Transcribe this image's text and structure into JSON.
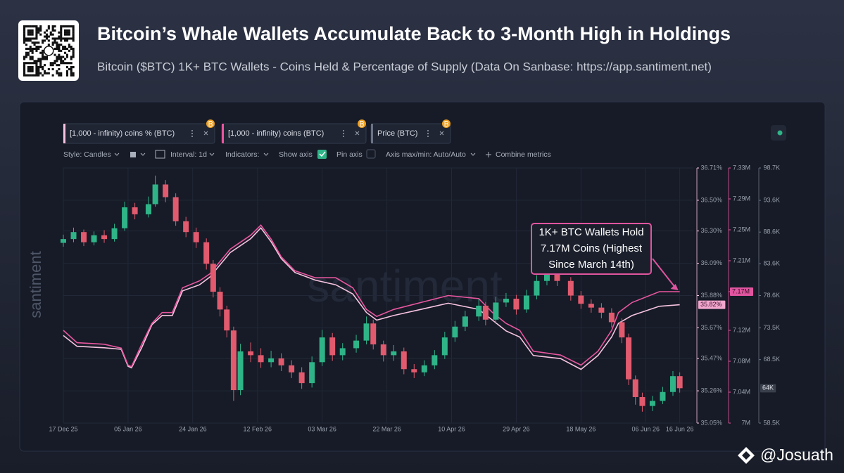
{
  "header": {
    "title": "Bitcoin’s Whale Wallets Accumulate Back to 3-Month High in Holdings",
    "subtitle": "Bitcoin ($BTC) 1K+ BTC Wallets - Coins Held & Percentage of Supply (Data On Sanbase: https://app.santiment.net)"
  },
  "toolbar": [
    "Style: Candles",
    "Interval: 1d",
    "Indicators:",
    "Show axis",
    "Pin axis",
    "Axis max/min: Auto/Auto",
    "Combine metrics"
  ],
  "watermark": "santiment",
  "credit": "@Josuath",
  "chart_data": {
    "type": "combo",
    "xlim": [
      "2025-12-17",
      "2026-06-20"
    ],
    "xticks": [
      {
        "value": "2025-12-17",
        "label": "17 Dec 25"
      },
      {
        "value": "2026-01-05",
        "label": "05 Jan 26"
      },
      {
        "value": "2026-01-24",
        "label": "24 Jan 26"
      },
      {
        "value": "2026-02-12",
        "label": "12 Feb 26"
      },
      {
        "value": "2026-03-03",
        "label": "03 Mar 26"
      },
      {
        "value": "2026-03-22",
        "label": "22 Mar 26"
      },
      {
        "value": "2026-04-10",
        "label": "10 Apr 26"
      },
      {
        "value": "2026-04-29",
        "label": "29 Apr 26"
      },
      {
        "value": "2026-05-18",
        "label": "18 May 26"
      },
      {
        "value": "2026-06-06",
        "label": "06 Jun 26"
      },
      {
        "value": "2026-06-16",
        "label": "16 Jun 26"
      }
    ],
    "ylim": [
      35.05,
      36.71
    ],
    "yticks": [
      {
        "value": 36.71,
        "label": "36.71%"
      },
      {
        "value": 36.5,
        "label": "36.50%"
      },
      {
        "value": 36.3,
        "label": "36.30%"
      },
      {
        "value": 36.09,
        "label": "36.09%"
      },
      {
        "value": 35.88,
        "label": "35.88%"
      },
      {
        "value": 35.67,
        "label": "35.67%"
      },
      {
        "value": 35.47,
        "label": "35.47%"
      },
      {
        "value": 35.26,
        "label": "35.26%"
      },
      {
        "value": 35.05,
        "label": "35.05%"
      }
    ],
    "y2lim": [
      7000000,
      7330000
    ],
    "y2ticks": [
      {
        "value": 7330000,
        "label": "7.33M"
      },
      {
        "value": 7290000,
        "label": "7.29M"
      },
      {
        "value": 7250000,
        "label": "7.25M"
      },
      {
        "value": 7210000,
        "label": "7.21M"
      },
      {
        "value": 7170000,
        "label": "7.17M"
      },
      {
        "value": 7120000,
        "label": "7.12M"
      },
      {
        "value": 7080000,
        "label": "7.08M"
      },
      {
        "value": 7040000,
        "label": "7.04M"
      },
      {
        "value": 7000000,
        "label": "7M"
      }
    ],
    "y3lim": [
      58500,
      98700
    ],
    "y3ticks": [
      {
        "value": 98700,
        "label": "98.7K"
      },
      {
        "value": 93600,
        "label": "93.6K"
      },
      {
        "value": 88600,
        "label": "88.6K"
      },
      {
        "value": 83600,
        "label": "83.6K"
      },
      {
        "value": 78600,
        "label": "78.6K"
      },
      {
        "value": 73500,
        "label": "73.5K"
      },
      {
        "value": 68500,
        "label": "68.5K"
      },
      {
        "value": 58500,
        "label": "58.5K"
      }
    ],
    "grid": true,
    "series": [
      {
        "name": "[1,000 - infinity) coins % (BTC)",
        "type": "line",
        "axis": "y",
        "color": "#f7c3e0",
        "x": [
          "2025-12-17",
          "2025-12-21",
          "2025-12-29",
          "2026-01-03",
          "2026-01-05",
          "2026-01-06",
          "2026-01-09",
          "2026-01-12",
          "2026-01-15",
          "2026-01-18",
          "2026-01-21",
          "2026-01-26",
          "2026-01-29",
          "2026-02-04",
          "2026-02-10",
          "2026-02-13",
          "2026-02-16",
          "2026-02-19",
          "2026-02-23",
          "2026-03-01",
          "2026-03-07",
          "2026-03-12",
          "2026-03-16",
          "2026-03-19",
          "2026-03-24",
          "2026-04-01",
          "2026-04-09",
          "2026-04-18",
          "2026-04-22",
          "2026-04-26",
          "2026-04-30",
          "2026-05-04",
          "2026-05-12",
          "2026-05-18",
          "2026-05-23",
          "2026-05-27",
          "2026-05-29",
          "2026-06-02",
          "2026-06-10",
          "2026-06-16"
        ],
        "values": [
          35.62,
          35.55,
          35.54,
          35.53,
          35.42,
          35.41,
          35.54,
          35.69,
          35.75,
          35.75,
          35.91,
          35.95,
          36.0,
          36.16,
          36.25,
          36.32,
          36.23,
          36.12,
          36.03,
          35.98,
          35.95,
          35.89,
          35.77,
          35.72,
          35.75,
          35.79,
          35.83,
          35.79,
          35.72,
          35.65,
          35.61,
          35.49,
          35.47,
          35.4,
          35.49,
          35.61,
          35.7,
          35.75,
          35.81,
          35.82
        ]
      },
      {
        "name": "[1,000 - infinity) coins (BTC)",
        "type": "line",
        "axis": "y2",
        "color": "#e8569f",
        "x": [
          "2025-12-17",
          "2025-12-21",
          "2025-12-29",
          "2026-01-03",
          "2026-01-05",
          "2026-01-06",
          "2026-01-09",
          "2026-01-12",
          "2026-01-15",
          "2026-01-18",
          "2026-01-21",
          "2026-01-26",
          "2026-01-29",
          "2026-02-04",
          "2026-02-10",
          "2026-02-13",
          "2026-02-16",
          "2026-02-19",
          "2026-02-23",
          "2026-03-01",
          "2026-03-07",
          "2026-03-12",
          "2026-03-16",
          "2026-03-19",
          "2026-03-24",
          "2026-04-01",
          "2026-04-09",
          "2026-04-18",
          "2026-04-22",
          "2026-04-26",
          "2026-04-30",
          "2026-05-04",
          "2026-05-12",
          "2026-05-18",
          "2026-05-23",
          "2026-05-27",
          "2026-05-29",
          "2026-06-02",
          "2026-06-10",
          "2026-06-16"
        ],
        "values": [
          7120000,
          7104000,
          7102000,
          7097000,
          7075000,
          7073000,
          7102000,
          7129000,
          7143000,
          7143000,
          7175000,
          7184000,
          7193000,
          7225000,
          7243000,
          7256000,
          7238000,
          7215000,
          7197000,
          7188000,
          7188000,
          7175000,
          7147000,
          7138000,
          7147000,
          7156000,
          7165000,
          7161000,
          7143000,
          7129000,
          7120000,
          7093000,
          7088000,
          7075000,
          7093000,
          7120000,
          7143000,
          7156000,
          7170000,
          7170000
        ]
      },
      {
        "name": "Price (BTC)",
        "type": "candlestick",
        "axis": "y3",
        "color": "#6b7284",
        "up_color": "#2fb488",
        "down_color": "#e25a6e",
        "x": [
          "2025-12-17",
          "2025-12-20",
          "2025-12-23",
          "2025-12-26",
          "2025-12-29",
          "2026-01-01",
          "2026-01-04",
          "2026-01-07",
          "2026-01-11",
          "2026-01-13",
          "2026-01-16",
          "2026-01-19",
          "2026-01-22",
          "2026-01-25",
          "2026-01-28",
          "2026-01-30",
          "2026-02-01",
          "2026-02-03",
          "2026-02-05",
          "2026-02-07",
          "2026-02-10",
          "2026-02-13",
          "2026-02-16",
          "2026-02-19",
          "2026-02-22",
          "2026-02-25",
          "2026-02-28",
          "2026-03-03",
          "2026-03-06",
          "2026-03-09",
          "2026-03-13",
          "2026-03-16",
          "2026-03-18",
          "2026-03-21",
          "2026-03-24",
          "2026-03-27",
          "2026-03-30",
          "2026-04-02",
          "2026-04-05",
          "2026-04-08",
          "2026-04-11",
          "2026-04-14",
          "2026-04-18",
          "2026-04-20",
          "2026-04-23",
          "2026-04-26",
          "2026-04-29",
          "2026-05-02",
          "2026-05-05",
          "2026-05-08",
          "2026-05-11",
          "2026-05-15",
          "2026-05-18",
          "2026-05-21",
          "2026-05-24",
          "2026-05-27",
          "2026-05-30",
          "2026-06-01",
          "2026-06-03",
          "2026-06-05",
          "2026-06-08",
          "2026-06-11",
          "2026-06-14",
          "2026-06-16"
        ],
        "open": [
          86900,
          87500,
          88600,
          87000,
          88100,
          87500,
          89200,
          92500,
          91400,
          93000,
          96100,
          94100,
          90300,
          88600,
          87000,
          83600,
          79200,
          76400,
          73100,
          63700,
          69800,
          69200,
          68100,
          68700,
          67600,
          66500,
          64800,
          68100,
          72000,
          69200,
          70300,
          71500,
          74200,
          70900,
          69200,
          69800,
          67000,
          66500,
          67600,
          69200,
          72000,
          73700,
          75300,
          77000,
          74800,
          77500,
          78100,
          76400,
          78600,
          80900,
          82000,
          80900,
          78600,
          77300,
          76700,
          75900,
          74400,
          72000,
          65400,
          62600,
          61200,
          62000,
          63400,
          65900
        ],
        "high": [
          88200,
          89300,
          89000,
          88700,
          88900,
          89900,
          93400,
          93200,
          94200,
          97500,
          96800,
          94700,
          91000,
          89300,
          87600,
          84200,
          79900,
          77000,
          73700,
          71000,
          71200,
          70300,
          69900,
          69500,
          68400,
          67300,
          69000,
          73200,
          72700,
          71100,
          72400,
          75300,
          74800,
          71500,
          70800,
          70400,
          67800,
          68400,
          70000,
          72900,
          74600,
          76200,
          78100,
          77600,
          78400,
          79000,
          78700,
          79500,
          81800,
          83000,
          82700,
          81500,
          79300,
          78000,
          77400,
          76600,
          75000,
          72600,
          66000,
          63300,
          62800,
          64200,
          66700,
          66500
        ],
        "low": [
          86300,
          87000,
          86400,
          86500,
          86900,
          87100,
          88800,
          90600,
          90900,
          92600,
          93300,
          89600,
          87800,
          86100,
          82700,
          78300,
          75300,
          72000,
          62000,
          62900,
          68100,
          67200,
          67300,
          66700,
          65600,
          63900,
          64100,
          67500,
          68300,
          68400,
          69600,
          70900,
          70100,
          68200,
          68300,
          66200,
          65600,
          65900,
          67000,
          68600,
          71300,
          73000,
          74600,
          73900,
          74100,
          76800,
          75600,
          75900,
          78000,
          80200,
          80100,
          77800,
          76500,
          75900,
          75000,
          73600,
          71100,
          64500,
          61400,
          60300,
          60400,
          61500,
          62800,
          63300
        ],
        "close": [
          87500,
          88600,
          87000,
          88100,
          87500,
          89200,
          92500,
          91400,
          93000,
          96100,
          94100,
          90300,
          88600,
          87000,
          83600,
          79200,
          76400,
          73100,
          63700,
          69800,
          69200,
          68100,
          68700,
          67600,
          66500,
          64800,
          68100,
          72000,
          69200,
          70300,
          71500,
          74200,
          70900,
          69200,
          69800,
          67000,
          66500,
          67600,
          69200,
          72000,
          73700,
          75300,
          77000,
          74800,
          77500,
          78100,
          76400,
          78600,
          80900,
          82000,
          80900,
          78600,
          77300,
          76700,
          75900,
          74400,
          72000,
          65400,
          62600,
          61200,
          62000,
          63400,
          65900,
          64000
        ]
      }
    ],
    "badges": [
      {
        "axis": "y2",
        "value": 7170000,
        "label": "7.17M",
        "color": "#e0559f"
      },
      {
        "axis": "y",
        "value": 35.82,
        "label": "35.82%",
        "color": "#f2a7cf"
      },
      {
        "axis": "y3",
        "value": 64000,
        "label": "64K",
        "color": "#3a3f4c"
      }
    ],
    "annotation": {
      "lines": [
        "1K+ BTC Wallets Hold",
        "7.17M Coins (Highest",
        "Since March 14th)"
      ],
      "x": "2026-06-16",
      "value": 7170000,
      "axis": "y2"
    }
  }
}
